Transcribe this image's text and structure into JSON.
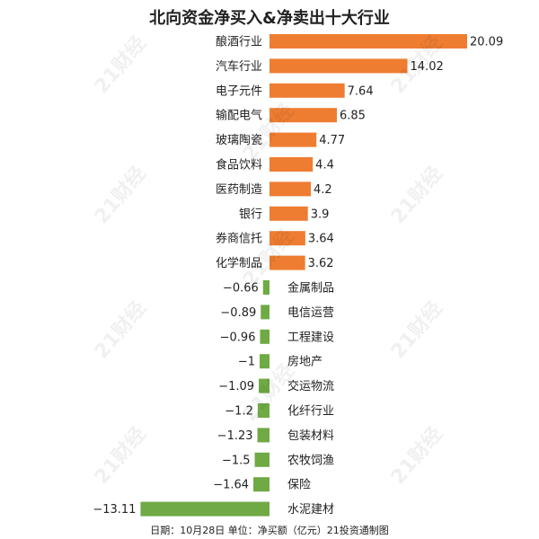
{
  "chart_data": {
    "type": "bar",
    "orientation": "horizontal",
    "title": "北向资金净买入&净卖出十大行业",
    "categories": [
      "酿酒行业",
      "汽车行业",
      "电子元件",
      "输配电气",
      "玻璃陶瓷",
      "食品饮料",
      "医药制造",
      "银行",
      "券商信托",
      "化学制品",
      "金属制品",
      "电信运营",
      "工程建设",
      "房地产",
      "交运物流",
      "化纤行业",
      "包装材料",
      "农牧饲渔",
      "保险",
      "水泥建材"
    ],
    "values": [
      20.09,
      14.02,
      7.64,
      6.85,
      4.77,
      4.4,
      4.2,
      3.9,
      3.64,
      3.62,
      -0.66,
      -0.89,
      -0.96,
      -1,
      -1.09,
      -1.2,
      -1.23,
      -1.5,
      -1.64,
      -13.11
    ],
    "value_labels": [
      "20.09",
      "14.02",
      "7.64",
      "6.85",
      "4.77",
      "4.4",
      "4.2",
      "3.9",
      "3.64",
      "3.62",
      "−0.66",
      "−0.89",
      "−0.96",
      "−1",
      "−1.09",
      "−1.2",
      "−1.23",
      "−1.5",
      "−1.64",
      "−13.11"
    ],
    "colors": {
      "positive": "#ee7d31",
      "negative": "#6faa45"
    },
    "grid": false,
    "legend": "none"
  },
  "footnote": "日期：10月28日 单位：净买额（亿元）21投资通制图",
  "watermark": "21财经"
}
